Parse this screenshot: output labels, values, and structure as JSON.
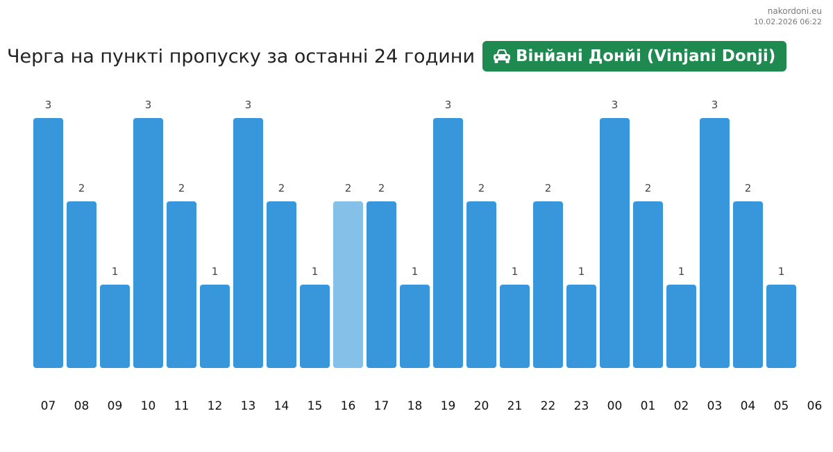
{
  "source": {
    "site": "nakordoni.eu",
    "timestamp": "10.02.2026 06:22"
  },
  "header": {
    "title": "Черга на пункті пропуску за останні 24 години",
    "checkpoint": "Вінйані Донйі (Vinjani Donji)",
    "checkpoint_icon": "car-icon"
  },
  "colors": {
    "bar": "#3897db",
    "bar_highlight": "#85c0e8",
    "badge": "#1e8a4f"
  },
  "chart_data": {
    "type": "bar",
    "categories": [
      "07",
      "08",
      "09",
      "10",
      "11",
      "12",
      "13",
      "14",
      "15",
      "16",
      "17",
      "18",
      "19",
      "20",
      "21",
      "22",
      "23",
      "00",
      "01",
      "02",
      "03",
      "04",
      "05"
    ],
    "values": [
      3,
      2,
      1,
      3,
      2,
      1,
      3,
      2,
      1,
      2,
      2,
      1,
      3,
      2,
      1,
      2,
      1,
      3,
      2,
      1,
      3,
      2,
      1
    ],
    "tick_labels": [
      "07",
      "08",
      "09",
      "10",
      "11",
      "12",
      "13",
      "14",
      "15",
      "16",
      "17",
      "18",
      "19",
      "20",
      "21",
      "22",
      "23",
      "00",
      "01",
      "02",
      "03",
      "04",
      "05",
      "06"
    ],
    "highlight_category": "16",
    "ylim": [
      0,
      3
    ],
    "grid": false,
    "legend": "none",
    "xlabel": "",
    "ylabel": ""
  }
}
